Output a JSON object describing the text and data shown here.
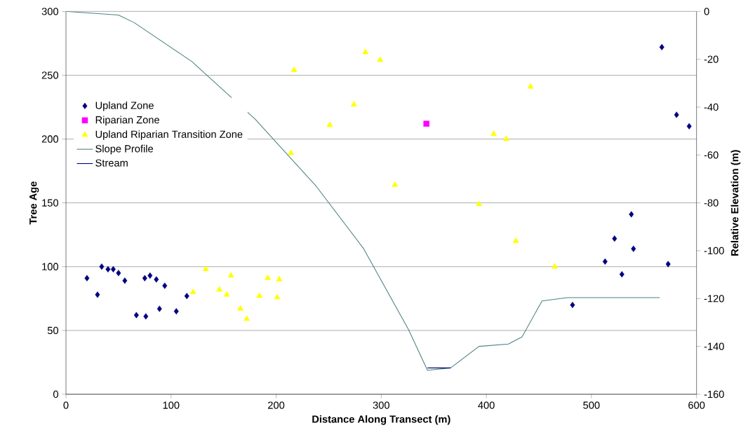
{
  "chart_data": {
    "type": "scatter",
    "xlabel": "Distance Along Transect (m)",
    "ylabel": "Tree Age",
    "y2label": "Relative Elevation (m)",
    "xlim": [
      0,
      600
    ],
    "xticks": [
      0,
      100,
      200,
      300,
      400,
      500,
      600
    ],
    "ylim": [
      0,
      300
    ],
    "yticks": [
      0,
      50,
      100,
      150,
      200,
      250,
      300
    ],
    "y2lim": [
      -160,
      0
    ],
    "y2ticks": [
      -160,
      -140,
      -120,
      -100,
      -80,
      -60,
      -40,
      -20,
      0
    ],
    "grid": "y",
    "legend": "top left",
    "series": [
      {
        "name": "Upland Zone",
        "marker": "diamond",
        "color": "#000080",
        "x": [
          20,
          30,
          34,
          40,
          45,
          50,
          56,
          67,
          75,
          76,
          80,
          86,
          89,
          94,
          105,
          115,
          482,
          513,
          522,
          529,
          538,
          540,
          567,
          573,
          581,
          593
        ],
        "values": [
          91,
          78,
          100,
          98,
          98,
          95,
          89,
          62,
          91,
          61,
          93,
          90,
          67,
          85,
          65,
          77,
          70,
          104,
          122,
          94,
          141,
          114,
          272,
          102,
          219,
          210
        ]
      },
      {
        "name": "Riparian Zone",
        "marker": "square",
        "color": "#ff00ff",
        "x": [
          343
        ],
        "values": [
          212
        ]
      },
      {
        "name": "Upland Riparian Transition Zone",
        "marker": "triangle",
        "color": "#ffff00",
        "x": [
          121,
          133,
          146,
          153,
          157,
          166,
          172,
          184,
          192,
          201,
          203,
          214,
          217,
          251,
          274,
          285,
          299,
          313,
          393,
          407,
          419,
          428,
          442,
          465
        ],
        "values": [
          80,
          98,
          82,
          78,
          93,
          67,
          59,
          77,
          91,
          76,
          90,
          189,
          254,
          211,
          227,
          268,
          262,
          164,
          149,
          204,
          200,
          120,
          241,
          100
        ]
      },
      {
        "name": "Slope Profile",
        "type": "line",
        "axis": "y2",
        "marker": "none",
        "line_style": "solid",
        "color": "#4d8080",
        "x": [
          0,
          50,
          65,
          120,
          180,
          238,
          283,
          326,
          344,
          366,
          393,
          421,
          434,
          453,
          477,
          565
        ],
        "values": [
          0,
          -1.5,
          -4.7,
          -21,
          -45,
          -73,
          -99,
          -133,
          -150,
          -149,
          -140,
          -139,
          -136,
          -121,
          -119.6,
          -119.6
        ]
      },
      {
        "name": "Stream",
        "type": "line",
        "axis": "y2",
        "marker": "none",
        "line_style": "solid",
        "color": "#000080",
        "x": [
          344,
          366
        ],
        "values": [
          -149,
          -149
        ]
      }
    ]
  }
}
